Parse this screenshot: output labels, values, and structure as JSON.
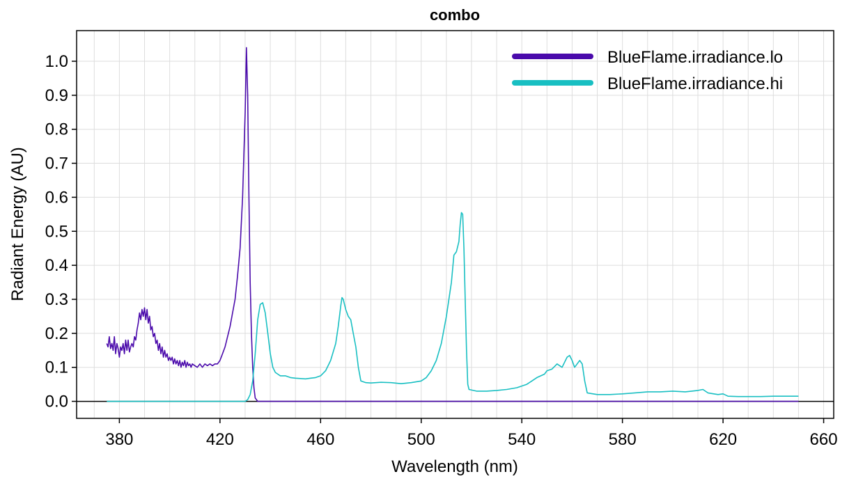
{
  "chart_data": {
    "type": "line",
    "title": "combo",
    "xlabel": "Wavelength (nm)",
    "ylabel": "Radiant Energy (AU)",
    "xlim": [
      363,
      664
    ],
    "ylim": [
      -0.05,
      1.09
    ],
    "xticks": [
      380,
      420,
      460,
      500,
      540,
      580,
      620,
      660
    ],
    "yticks": [
      0.0,
      0.1,
      0.2,
      0.3,
      0.4,
      0.5,
      0.6,
      0.7,
      0.8,
      0.9,
      1.0
    ],
    "ytick_labels": [
      "0.0",
      "0.1",
      "0.2",
      "0.3",
      "0.4",
      "0.5",
      "0.6",
      "0.7",
      "0.8",
      "0.9",
      "1.0"
    ],
    "grid": true,
    "legend_position": "top-right",
    "series": [
      {
        "name": "BlueFlame.irradiance.lo",
        "color": "#4a0aab",
        "points": [
          [
            375,
            0.17
          ],
          [
            375.5,
            0.16
          ],
          [
            376,
            0.19
          ],
          [
            376.5,
            0.155
          ],
          [
            377,
            0.17
          ],
          [
            377.5,
            0.15
          ],
          [
            378,
            0.19
          ],
          [
            378.5,
            0.14
          ],
          [
            379,
            0.17
          ],
          [
            379.5,
            0.155
          ],
          [
            380,
            0.13
          ],
          [
            380.5,
            0.16
          ],
          [
            381,
            0.15
          ],
          [
            381.5,
            0.17
          ],
          [
            382,
            0.14
          ],
          [
            382.5,
            0.18
          ],
          [
            383,
            0.15
          ],
          [
            383.5,
            0.18
          ],
          [
            384,
            0.145
          ],
          [
            384.5,
            0.16
          ],
          [
            385,
            0.17
          ],
          [
            385.5,
            0.16
          ],
          [
            386,
            0.19
          ],
          [
            386.5,
            0.18
          ],
          [
            387,
            0.21
          ],
          [
            387.5,
            0.23
          ],
          [
            388,
            0.26
          ],
          [
            388.5,
            0.24
          ],
          [
            389,
            0.27
          ],
          [
            389.5,
            0.25
          ],
          [
            390,
            0.275
          ],
          [
            390.5,
            0.24
          ],
          [
            391,
            0.27
          ],
          [
            391.5,
            0.23
          ],
          [
            392,
            0.25
          ],
          [
            392.5,
            0.21
          ],
          [
            393,
            0.22
          ],
          [
            393.5,
            0.19
          ],
          [
            394,
            0.2
          ],
          [
            394.5,
            0.17
          ],
          [
            395,
            0.18
          ],
          [
            395.5,
            0.15
          ],
          [
            396,
            0.17
          ],
          [
            396.5,
            0.14
          ],
          [
            397,
            0.16
          ],
          [
            397.5,
            0.13
          ],
          [
            398,
            0.15
          ],
          [
            398.5,
            0.13
          ],
          [
            399,
            0.14
          ],
          [
            399.5,
            0.12
          ],
          [
            400,
            0.13
          ],
          [
            400.5,
            0.12
          ],
          [
            401,
            0.13
          ],
          [
            401.5,
            0.11
          ],
          [
            402,
            0.125
          ],
          [
            402.5,
            0.11
          ],
          [
            403,
            0.12
          ],
          [
            403.5,
            0.105
          ],
          [
            404,
            0.12
          ],
          [
            404.5,
            0.1
          ],
          [
            405,
            0.115
          ],
          [
            405.5,
            0.105
          ],
          [
            406,
            0.12
          ],
          [
            406.5,
            0.1
          ],
          [
            407,
            0.115
          ],
          [
            407.5,
            0.105
          ],
          [
            408,
            0.11
          ],
          [
            408.5,
            0.1
          ],
          [
            409,
            0.11
          ],
          [
            410,
            0.105
          ],
          [
            411,
            0.1
          ],
          [
            412,
            0.11
          ],
          [
            413,
            0.1
          ],
          [
            414,
            0.11
          ],
          [
            415,
            0.105
          ],
          [
            416,
            0.11
          ],
          [
            417,
            0.105
          ],
          [
            418,
            0.11
          ],
          [
            419,
            0.11
          ],
          [
            420,
            0.12
          ],
          [
            421,
            0.14
          ],
          [
            422,
            0.16
          ],
          [
            423,
            0.19
          ],
          [
            424,
            0.22
          ],
          [
            425,
            0.26
          ],
          [
            426,
            0.3
          ],
          [
            427,
            0.37
          ],
          [
            428,
            0.45
          ],
          [
            429,
            0.6
          ],
          [
            430,
            0.85
          ],
          [
            430.5,
            1.04
          ],
          [
            431,
            0.9
          ],
          [
            431.5,
            0.6
          ],
          [
            432,
            0.35
          ],
          [
            432.5,
            0.2
          ],
          [
            433,
            0.1
          ],
          [
            433.5,
            0.04
          ],
          [
            434,
            0.01
          ],
          [
            435,
            0.0
          ],
          [
            440,
            0.0
          ],
          [
            460,
            0.0
          ],
          [
            500,
            0.0
          ],
          [
            540,
            0.0
          ],
          [
            580,
            0.0
          ],
          [
            620,
            0.0
          ],
          [
            650,
            0.0
          ]
        ]
      },
      {
        "name": "BlueFlame.irradiance.hi",
        "color": "#18bfc2",
        "points": [
          [
            375,
            0.0
          ],
          [
            420,
            0.0
          ],
          [
            430,
            0.0
          ],
          [
            431,
            0.005
          ],
          [
            432,
            0.02
          ],
          [
            433,
            0.06
          ],
          [
            434,
            0.14
          ],
          [
            435,
            0.24
          ],
          [
            436,
            0.285
          ],
          [
            437,
            0.29
          ],
          [
            438,
            0.26
          ],
          [
            439,
            0.2
          ],
          [
            440,
            0.14
          ],
          [
            441,
            0.1
          ],
          [
            442,
            0.085
          ],
          [
            443,
            0.08
          ],
          [
            444,
            0.075
          ],
          [
            446,
            0.075
          ],
          [
            448,
            0.07
          ],
          [
            450,
            0.068
          ],
          [
            452,
            0.067
          ],
          [
            454,
            0.066
          ],
          [
            456,
            0.068
          ],
          [
            458,
            0.07
          ],
          [
            460,
            0.075
          ],
          [
            462,
            0.09
          ],
          [
            464,
            0.12
          ],
          [
            466,
            0.17
          ],
          [
            467,
            0.22
          ],
          [
            468,
            0.28
          ],
          [
            468.5,
            0.305
          ],
          [
            469,
            0.3
          ],
          [
            470,
            0.27
          ],
          [
            471,
            0.25
          ],
          [
            472,
            0.24
          ],
          [
            473,
            0.2
          ],
          [
            474,
            0.16
          ],
          [
            475,
            0.1
          ],
          [
            476,
            0.06
          ],
          [
            478,
            0.055
          ],
          [
            480,
            0.054
          ],
          [
            484,
            0.056
          ],
          [
            488,
            0.055
          ],
          [
            492,
            0.052
          ],
          [
            496,
            0.055
          ],
          [
            500,
            0.06
          ],
          [
            502,
            0.07
          ],
          [
            504,
            0.09
          ],
          [
            506,
            0.12
          ],
          [
            508,
            0.17
          ],
          [
            510,
            0.25
          ],
          [
            512,
            0.35
          ],
          [
            513,
            0.43
          ],
          [
            514,
            0.44
          ],
          [
            515,
            0.47
          ],
          [
            515.5,
            0.52
          ],
          [
            516,
            0.555
          ],
          [
            516.5,
            0.55
          ],
          [
            517,
            0.45
          ],
          [
            517.5,
            0.3
          ],
          [
            518,
            0.15
          ],
          [
            518.5,
            0.05
          ],
          [
            519,
            0.035
          ],
          [
            522,
            0.03
          ],
          [
            526,
            0.03
          ],
          [
            530,
            0.032
          ],
          [
            534,
            0.035
          ],
          [
            538,
            0.04
          ],
          [
            542,
            0.05
          ],
          [
            546,
            0.07
          ],
          [
            549,
            0.08
          ],
          [
            550,
            0.09
          ],
          [
            552,
            0.095
          ],
          [
            554,
            0.11
          ],
          [
            556,
            0.1
          ],
          [
            558,
            0.13
          ],
          [
            559,
            0.135
          ],
          [
            560,
            0.12
          ],
          [
            561,
            0.1
          ],
          [
            562,
            0.11
          ],
          [
            563,
            0.12
          ],
          [
            564,
            0.11
          ],
          [
            565,
            0.06
          ],
          [
            566,
            0.025
          ],
          [
            570,
            0.02
          ],
          [
            575,
            0.02
          ],
          [
            580,
            0.022
          ],
          [
            585,
            0.025
          ],
          [
            590,
            0.028
          ],
          [
            595,
            0.028
          ],
          [
            600,
            0.03
          ],
          [
            605,
            0.028
          ],
          [
            610,
            0.032
          ],
          [
            612,
            0.035
          ],
          [
            614,
            0.025
          ],
          [
            618,
            0.02
          ],
          [
            620,
            0.022
          ],
          [
            622,
            0.015
          ],
          [
            626,
            0.014
          ],
          [
            630,
            0.014
          ],
          [
            635,
            0.014
          ],
          [
            640,
            0.015
          ],
          [
            645,
            0.015
          ],
          [
            650,
            0.015
          ]
        ]
      }
    ]
  }
}
